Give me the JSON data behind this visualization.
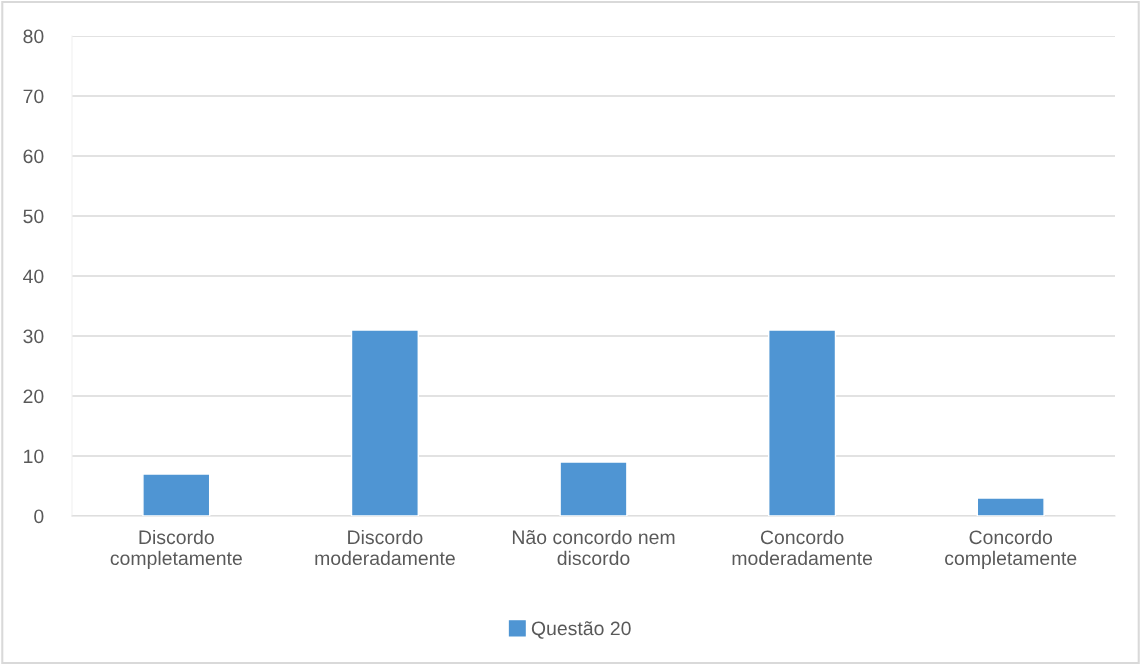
{
  "chart_data": {
    "type": "bar",
    "categories": [
      "Discordo\ncompletamente",
      "Discordo\nmoderadamente",
      "Não concordo nem\ndiscordo",
      "Concordo\nmoderadamente",
      "Concordo\ncompletamente"
    ],
    "series": [
      {
        "name": "Questão 20",
        "color": "#4f95d3",
        "values": [
          7,
          31,
          9,
          31,
          3
        ]
      }
    ],
    "ylim": [
      0,
      80
    ],
    "yticks": [
      0,
      10,
      20,
      30,
      40,
      50,
      60,
      70,
      80
    ],
    "grid": "y",
    "legend": "bottom"
  }
}
